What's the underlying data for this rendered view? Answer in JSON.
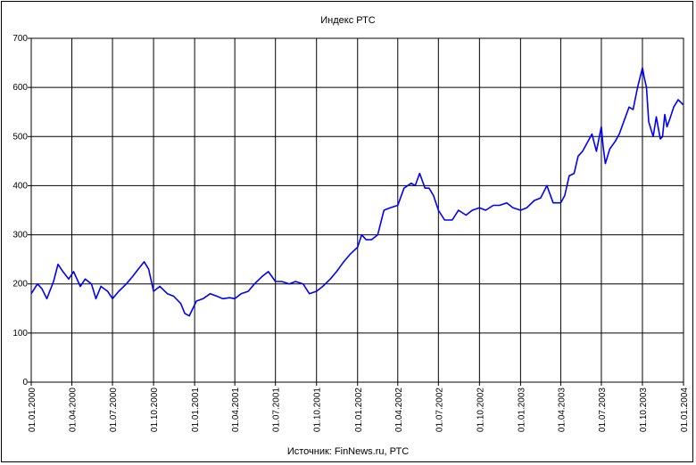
{
  "chart_data": {
    "type": "line",
    "title": "Индекс РТС",
    "source": "Источник: FinNews.ru, РТС",
    "xlabel": "",
    "ylabel": "",
    "ylim": [
      0,
      700
    ],
    "yticks": [
      "0",
      "100",
      "200",
      "300",
      "400",
      "500",
      "600",
      "700"
    ],
    "xlim": [
      "01.01.2000",
      "01.01.2004"
    ],
    "xticks": [
      "01.01.2000",
      "01.04.2000",
      "01.07.2000",
      "01.10.2000",
      "01.01.2001",
      "01.04.2001",
      "01.07.2001",
      "01.10.2001",
      "01.01.2002",
      "01.04.2002",
      "01.07.2002",
      "01.10.2002",
      "01.01.2003",
      "01.04.2003",
      "01.07.2003",
      "01.10.2003",
      "01.01.2004"
    ],
    "grid": true,
    "line_color": "#0000ff",
    "series": [
      {
        "x": [
          "2000-01-01",
          "2000-01-15",
          "2000-01-25",
          "2000-02-05",
          "2000-02-20",
          "2000-03-01",
          "2000-03-12",
          "2000-03-25",
          "2000-04-05",
          "2000-04-20",
          "2000-05-01",
          "2000-05-15",
          "2000-05-25",
          "2000-06-05",
          "2000-06-20",
          "2000-07-01",
          "2000-07-15",
          "2000-08-01",
          "2000-08-15",
          "2000-09-01",
          "2000-09-10",
          "2000-09-20",
          "2000-10-01",
          "2000-10-15",
          "2000-11-01",
          "2000-11-15",
          "2000-12-01",
          "2000-12-10",
          "2000-12-20",
          "2001-01-05",
          "2001-01-20",
          "2001-02-05",
          "2001-02-20",
          "2001-03-05",
          "2001-03-20",
          "2001-04-01",
          "2001-04-15",
          "2001-05-01",
          "2001-05-15",
          "2001-06-01",
          "2001-06-15",
          "2001-07-01",
          "2001-07-15",
          "2001-08-01",
          "2001-08-15",
          "2001-09-01",
          "2001-09-15",
          "2001-10-01",
          "2001-10-15",
          "2001-11-01",
          "2001-11-15",
          "2001-12-01",
          "2001-12-15",
          "2002-01-01",
          "2002-01-10",
          "2002-01-20",
          "2002-02-01",
          "2002-02-15",
          "2002-03-01",
          "2002-03-15",
          "2002-04-01",
          "2002-04-15",
          "2002-05-01",
          "2002-05-10",
          "2002-05-20",
          "2002-06-01",
          "2002-06-10",
          "2002-06-20",
          "2002-07-01",
          "2002-07-15",
          "2002-08-01",
          "2002-08-15",
          "2002-09-01",
          "2002-09-15",
          "2002-10-01",
          "2002-10-15",
          "2002-11-01",
          "2002-11-15",
          "2002-12-01",
          "2002-12-15",
          "2003-01-01",
          "2003-01-15",
          "2003-02-01",
          "2003-02-15",
          "2003-03-01",
          "2003-03-15",
          "2003-04-01",
          "2003-04-10",
          "2003-04-20",
          "2003-05-01",
          "2003-05-10",
          "2003-05-20",
          "2003-06-01",
          "2003-06-10",
          "2003-06-20",
          "2003-07-01",
          "2003-07-05",
          "2003-07-10",
          "2003-07-20",
          "2003-08-01",
          "2003-08-10",
          "2003-08-20",
          "2003-09-01",
          "2003-09-10",
          "2003-09-20",
          "2003-10-01",
          "2003-10-05",
          "2003-10-10",
          "2003-10-15",
          "2003-10-20",
          "2003-10-25",
          "2003-11-01",
          "2003-11-05",
          "2003-11-10",
          "2003-11-15",
          "2003-11-20",
          "2003-11-25",
          "2003-12-01",
          "2003-12-10",
          "2003-12-20",
          "2003-12-31"
        ],
        "y": [
          180,
          200,
          190,
          170,
          205,
          240,
          225,
          210,
          225,
          195,
          210,
          200,
          170,
          195,
          185,
          170,
          185,
          200,
          215,
          235,
          245,
          230,
          185,
          195,
          180,
          175,
          160,
          140,
          135,
          165,
          170,
          180,
          175,
          170,
          172,
          170,
          180,
          185,
          200,
          215,
          225,
          205,
          205,
          200,
          205,
          200,
          180,
          185,
          195,
          210,
          225,
          245,
          260,
          275,
          300,
          290,
          290,
          300,
          350,
          355,
          360,
          395,
          405,
          400,
          425,
          395,
          395,
          380,
          350,
          330,
          330,
          350,
          340,
          350,
          355,
          350,
          360,
          360,
          365,
          355,
          350,
          355,
          370,
          375,
          400,
          365,
          365,
          380,
          420,
          425,
          460,
          470,
          490,
          505,
          470,
          520,
          480,
          445,
          475,
          490,
          505,
          530,
          560,
          555,
          600,
          640,
          620,
          600,
          530,
          515,
          500,
          540,
          520,
          495,
          500,
          545,
          520,
          535,
          560,
          575,
          565
        ]
      }
    ]
  }
}
